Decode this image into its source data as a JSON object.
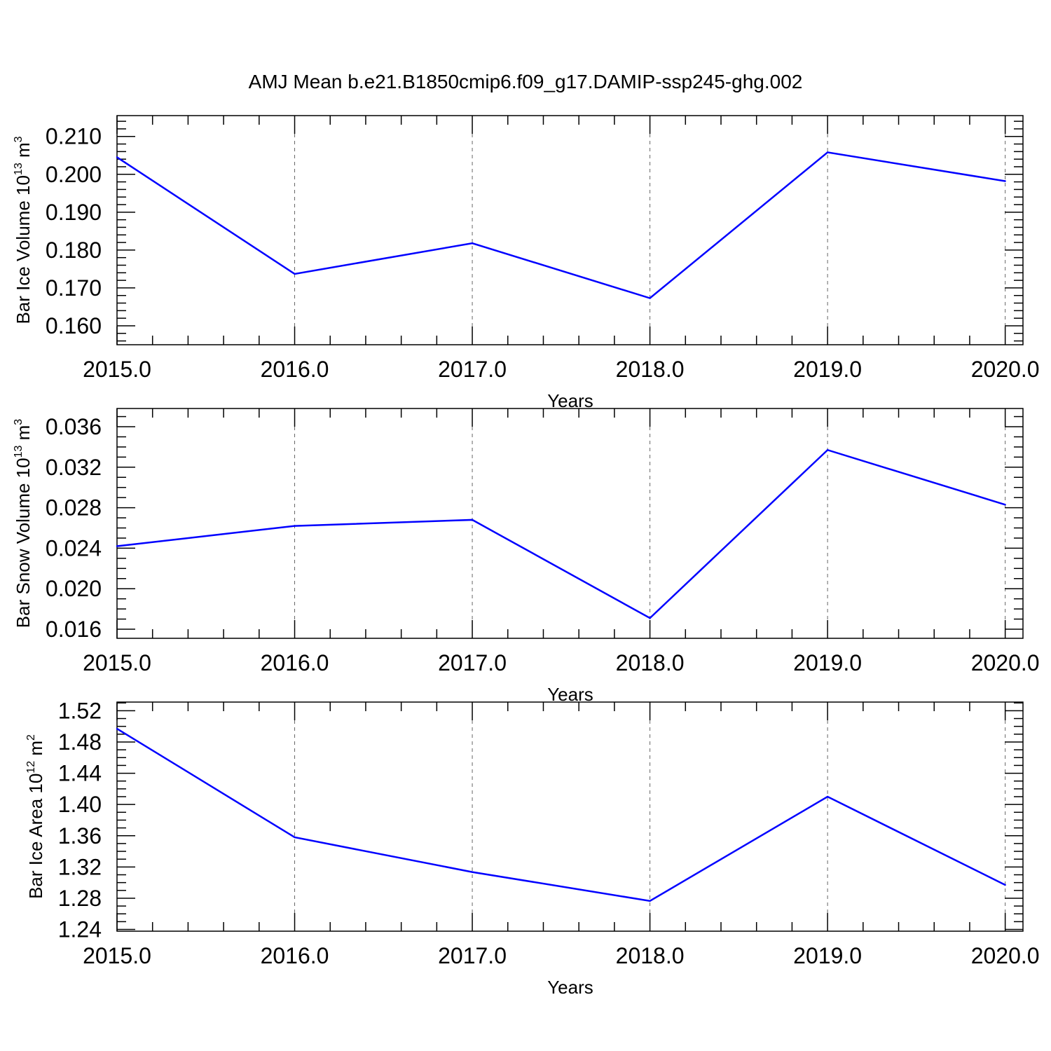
{
  "figure": {
    "title": "AMJ Mean b.e21.B1850cmip6.f09_g17.DAMIP-ssp245-ghg.002"
  },
  "styles": {
    "line_color": "#0000ff",
    "axis_color": "#000000",
    "grid_color": "#666666"
  },
  "chart_data": [
    {
      "type": "line",
      "title": "AMJ Mean b.e21.B1850cmip6.f09_g17.DAMIP-ssp245-ghg.002",
      "xlabel": "Years",
      "ylabel": {
        "prefix": "Bar Ice Volume 10",
        "exponent": "13",
        "suffix": " m",
        "unit_exponent": "3"
      },
      "x": [
        2015,
        2016,
        2017,
        2018,
        2019,
        2020
      ],
      "series": [
        {
          "values": [
            0.2045,
            0.1737,
            0.1818,
            0.1673,
            0.2058,
            0.1982
          ]
        }
      ],
      "xlim": [
        2015.0,
        2020.1
      ],
      "ylim": [
        0.155,
        0.2155
      ],
      "xticks": [
        2015,
        2016,
        2017,
        2018,
        2019,
        2020
      ],
      "xtick_labels": [
        "2015.0",
        "2016.0",
        "2017.0",
        "2018.0",
        "2019.0",
        "2020.0"
      ],
      "x_minor_step": 0.2,
      "yticks": [
        0.16,
        0.17,
        0.18,
        0.19,
        0.2,
        0.21
      ],
      "ytick_labels": [
        "0.160",
        "0.170",
        "0.180",
        "0.190",
        "0.200",
        "0.210"
      ],
      "y_minor_step": 0.002,
      "grid": "vertical-dashed"
    },
    {
      "type": "line",
      "xlabel": "Years",
      "ylabel": {
        "prefix": "Bar Snow Volume 10",
        "exponent": "13",
        "suffix": " m",
        "unit_exponent": "3"
      },
      "x": [
        2015,
        2016,
        2017,
        2018,
        2019,
        2020
      ],
      "series": [
        {
          "values": [
            0.0242,
            0.0262,
            0.0268,
            0.0171,
            0.0337,
            0.0283
          ]
        }
      ],
      "xlim": [
        2015.0,
        2020.1
      ],
      "ylim": [
        0.0151,
        0.0378
      ],
      "xticks": [
        2015,
        2016,
        2017,
        2018,
        2019,
        2020
      ],
      "xtick_labels": [
        "2015.0",
        "2016.0",
        "2017.0",
        "2018.0",
        "2019.0",
        "2020.0"
      ],
      "x_minor_step": 0.2,
      "yticks": [
        0.016,
        0.02,
        0.024,
        0.028,
        0.032,
        0.036
      ],
      "ytick_labels": [
        "0.016",
        "0.020",
        "0.024",
        "0.028",
        "0.032",
        "0.036"
      ],
      "y_minor_step": 0.001,
      "grid": "vertical-dashed"
    },
    {
      "type": "line",
      "xlabel": "Years",
      "ylabel": {
        "prefix": "Bar Ice Area 10",
        "exponent": "12",
        "suffix": " m",
        "unit_exponent": "2"
      },
      "x": [
        2015,
        2016,
        2017,
        2018,
        2019,
        2020
      ],
      "series": [
        {
          "values": [
            1.497,
            1.358,
            1.3135,
            1.2765,
            1.41,
            1.297
          ]
        }
      ],
      "xlim": [
        2015.0,
        2020.1
      ],
      "ylim": [
        1.2378,
        1.5311
      ],
      "xticks": [
        2015,
        2016,
        2017,
        2018,
        2019,
        2020
      ],
      "xtick_labels": [
        "2015.0",
        "2016.0",
        "2017.0",
        "2018.0",
        "2019.0",
        "2020.0"
      ],
      "x_minor_step": 0.2,
      "yticks": [
        1.24,
        1.28,
        1.32,
        1.36,
        1.4,
        1.44,
        1.48,
        1.52
      ],
      "ytick_labels": [
        "1.24",
        "1.28",
        "1.32",
        "1.36",
        "1.40",
        "1.44",
        "1.48",
        "1.52"
      ],
      "y_minor_step": 0.01,
      "grid": "vertical-dashed"
    }
  ]
}
